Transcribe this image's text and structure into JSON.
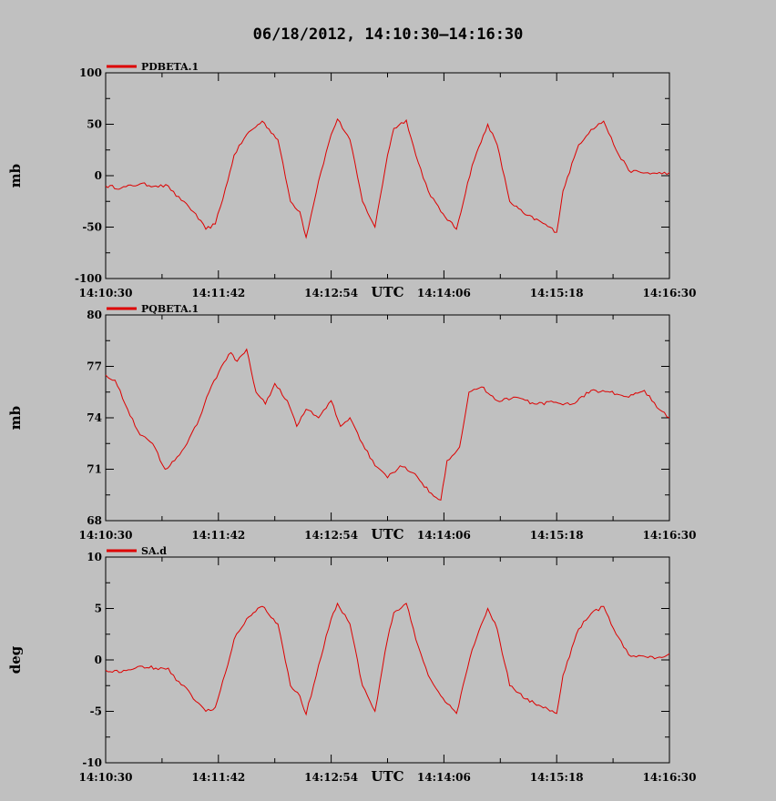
{
  "title": "06/18/2012, 14:10:30–14:16:30",
  "series_color": "#dd0000",
  "chart_data": [
    {
      "type": "line",
      "ylabel": "mb",
      "xlabel": "UTC",
      "legend": "PDBETA.1",
      "legend_position": "top-left",
      "ylim": [
        -100,
        100
      ],
      "yticks": [
        "100",
        "50",
        "0",
        "-50",
        "-100"
      ],
      "xlim": [
        "14:10:30",
        "14:16:30"
      ],
      "xticks": [
        "14:10:30",
        "14:11:42",
        "14:12:54",
        "14:14:06",
        "14:15:18",
        "14:16:30"
      ],
      "x": [
        "14:10:30",
        "14:10:40",
        "14:10:52",
        "14:11:02",
        "14:11:10",
        "14:11:15",
        "14:11:20",
        "14:11:26",
        "14:11:34",
        "14:11:40",
        "14:11:48",
        "14:11:52",
        "14:12:00",
        "14:12:10",
        "14:12:20",
        "14:12:28",
        "14:12:34",
        "14:12:38",
        "14:12:46",
        "14:12:54",
        "14:12:58",
        "14:13:06",
        "14:13:14",
        "14:13:22",
        "14:13:30",
        "14:13:34",
        "14:13:42",
        "14:13:48",
        "14:13:56",
        "14:14:04",
        "14:14:14",
        "14:14:24",
        "14:14:34",
        "14:14:40",
        "14:14:48",
        "14:14:58",
        "14:15:08",
        "14:15:18",
        "14:15:22",
        "14:15:32",
        "14:15:40",
        "14:15:48",
        "14:15:56",
        "14:16:04",
        "14:16:12",
        "14:16:22",
        "14:16:30"
      ],
      "series": [
        {
          "name": "PDBETA.1",
          "values": [
            -10,
            -12,
            -8,
            -10,
            -10,
            -20,
            -25,
            -35,
            -52,
            -47,
            -5,
            20,
            40,
            53,
            35,
            -25,
            -35,
            -60,
            -5,
            40,
            55,
            35,
            -25,
            -50,
            20,
            46,
            54,
            20,
            -15,
            -35,
            -52,
            10,
            50,
            30,
            -25,
            -38,
            -45,
            -55,
            -15,
            30,
            45,
            53,
            25,
            5,
            3,
            2,
            3
          ]
        }
      ]
    },
    {
      "type": "line",
      "ylabel": "mb",
      "xlabel": "UTC",
      "legend": "PQBETA.1",
      "legend_position": "top-left",
      "ylim": [
        68,
        80
      ],
      "yticks": [
        "80",
        "77",
        "74",
        "71",
        "68"
      ],
      "xlim": [
        "14:10:30",
        "14:16:30"
      ],
      "xticks": [
        "14:10:30",
        "14:11:42",
        "14:12:54",
        "14:14:06",
        "14:15:18",
        "14:16:30"
      ],
      "x": [
        "14:10:30",
        "14:10:36",
        "14:10:44",
        "14:10:52",
        "14:11:00",
        "14:11:08",
        "14:11:14",
        "14:11:22",
        "14:11:30",
        "14:11:36",
        "14:11:44",
        "14:11:50",
        "14:11:54",
        "14:12:00",
        "14:12:06",
        "14:12:12",
        "14:12:18",
        "14:12:26",
        "14:12:32",
        "14:12:38",
        "14:12:46",
        "14:12:54",
        "14:13:00",
        "14:13:06",
        "14:13:14",
        "14:13:22",
        "14:13:30",
        "14:13:38",
        "14:13:46",
        "14:13:52",
        "14:13:58",
        "14:14:04",
        "14:14:08",
        "14:14:16",
        "14:14:22",
        "14:14:30",
        "14:14:40",
        "14:14:52",
        "14:15:04",
        "14:15:16",
        "14:15:28",
        "14:15:40",
        "14:15:52",
        "14:16:04",
        "14:16:14",
        "14:16:22",
        "14:16:30"
      ],
      "series": [
        {
          "name": "PQBETA.1",
          "values": [
            76.5,
            76.2,
            74.5,
            73,
            72.5,
            71,
            71.5,
            72.5,
            74,
            75.5,
            77,
            77.8,
            77.3,
            78,
            75.5,
            74.8,
            76,
            75,
            73.5,
            74.5,
            74,
            75,
            73.5,
            74,
            72.5,
            71.2,
            70.5,
            71.2,
            70.8,
            70.2,
            69.6,
            69.2,
            71.5,
            72.3,
            75.5,
            75.8,
            75,
            75.2,
            74.8,
            74.9,
            74.8,
            75.6,
            75.5,
            75.2,
            75.6,
            74.6,
            74
          ]
        }
      ]
    },
    {
      "type": "line",
      "ylabel": "deg",
      "xlabel": "UTC",
      "legend": "SA.d",
      "legend_position": "top-left",
      "ylim": [
        -10,
        10
      ],
      "yticks": [
        "10",
        "5",
        "0",
        "-5",
        "-10"
      ],
      "xlim": [
        "14:10:30",
        "14:16:30"
      ],
      "xticks": [
        "14:10:30",
        "14:11:42",
        "14:12:54",
        "14:14:06",
        "14:15:18",
        "14:16:30"
      ],
      "x": [
        "14:10:30",
        "14:10:40",
        "14:10:52",
        "14:11:02",
        "14:11:10",
        "14:11:15",
        "14:11:20",
        "14:11:26",
        "14:11:34",
        "14:11:40",
        "14:11:48",
        "14:11:52",
        "14:12:00",
        "14:12:10",
        "14:12:20",
        "14:12:28",
        "14:12:34",
        "14:12:38",
        "14:12:46",
        "14:12:54",
        "14:12:58",
        "14:13:06",
        "14:13:14",
        "14:13:22",
        "14:13:30",
        "14:13:34",
        "14:13:42",
        "14:13:48",
        "14:13:56",
        "14:14:04",
        "14:14:14",
        "14:14:24",
        "14:14:34",
        "14:14:40",
        "14:14:48",
        "14:14:58",
        "14:15:08",
        "14:15:18",
        "14:15:22",
        "14:15:32",
        "14:15:40",
        "14:15:48",
        "14:15:56",
        "14:16:04",
        "14:16:12",
        "14:16:22",
        "14:16:30"
      ],
      "series": [
        {
          "name": "SA.d",
          "values": [
            -1,
            -1.2,
            -0.6,
            -0.8,
            -0.8,
            -2,
            -2.5,
            -3.8,
            -5,
            -4.6,
            -0.5,
            2,
            4,
            5.2,
            3.5,
            -2.5,
            -3.5,
            -5.3,
            -0.5,
            4,
            5.5,
            3.5,
            -2.5,
            -5,
            2,
            4.6,
            5.5,
            2,
            -1.5,
            -3.5,
            -5.2,
            1,
            5,
            3,
            -2.5,
            -3.8,
            -4.5,
            -5.2,
            -1.5,
            3,
            4.5,
            5.2,
            2.5,
            0.5,
            0.4,
            0.2,
            0.6
          ]
        }
      ]
    }
  ]
}
